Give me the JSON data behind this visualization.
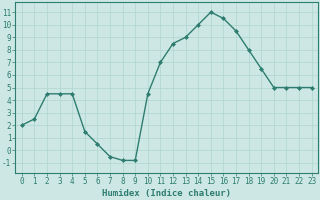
{
  "x": [
    0,
    1,
    2,
    3,
    4,
    5,
    6,
    7,
    8,
    9,
    10,
    11,
    12,
    13,
    14,
    15,
    16,
    17,
    18,
    19,
    20,
    21,
    22,
    23
  ],
  "y": [
    2.0,
    2.5,
    4.5,
    4.5,
    4.5,
    1.5,
    0.5,
    -0.5,
    -0.8,
    -0.8,
    4.5,
    7.0,
    8.5,
    9.0,
    10.0,
    11.0,
    10.5,
    9.5,
    8.0,
    6.5,
    5.0,
    5.0,
    5.0,
    5.0
  ],
  "line_color": "#2e7d70",
  "marker": "D",
  "marker_size": 2.0,
  "bg_color": "#cde8e4",
  "grid_color": "#b0d4cf",
  "xlabel": "Humidex (Indice chaleur)",
  "xlabel_fontsize": 6.5,
  "tick_fontsize": 5.5,
  "ylabel_ticks": [
    -1,
    0,
    1,
    2,
    3,
    4,
    5,
    6,
    7,
    8,
    9,
    10,
    11
  ],
  "xticks": [
    0,
    1,
    2,
    3,
    4,
    5,
    6,
    7,
    8,
    9,
    10,
    11,
    12,
    13,
    14,
    15,
    16,
    17,
    18,
    19,
    20,
    21,
    22,
    23
  ],
  "ylim": [
    -1.8,
    11.8
  ],
  "xlim": [
    -0.5,
    23.5
  ]
}
